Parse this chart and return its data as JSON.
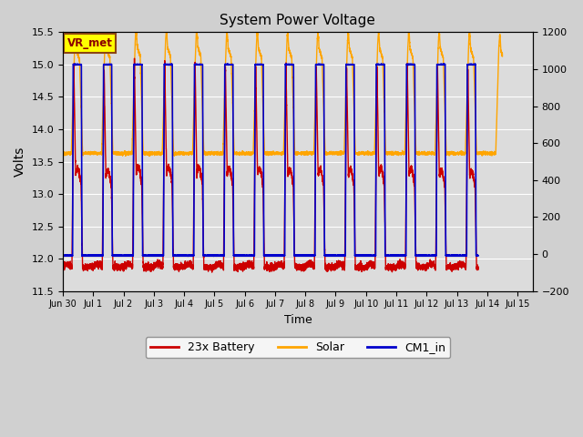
{
  "title": "System Power Voltage",
  "xlabel": "Time",
  "ylabel": "Volts",
  "ylim_left": [
    11.5,
    15.5
  ],
  "ylim_right": [
    -200,
    1200
  ],
  "annotation_text": "VR_met",
  "annotation_box_color": "#ffff00",
  "annotation_border_color": "#8b4513",
  "annotation_text_color": "#8b0000",
  "battery_color": "#cc0000",
  "solar_color": "#ffa500",
  "cm1_color": "#0000cc",
  "legend_labels": [
    "23x Battery",
    "Solar",
    "CM1_in"
  ],
  "xtick_labels": [
    "Jun 30",
    "Jul 1",
    "Jul 2",
    "Jul 3",
    "Jul 4",
    "Jul 5",
    "Jul 6",
    "Jul 7",
    "Jul 8",
    "Jul 9",
    "Jul 10",
    "Jul 11",
    "Jul 12",
    "Jul 13",
    "Jul 14",
    "Jul 15"
  ],
  "yticks_left": [
    11.5,
    12.0,
    12.5,
    13.0,
    13.5,
    14.0,
    14.5,
    15.0,
    15.5
  ],
  "yticks_right": [
    -200,
    0,
    200,
    400,
    600,
    800,
    1000,
    1200
  ],
  "fig_bg": "#d0d0d0",
  "plot_bg": "#dcdcdc",
  "xlim": [
    0,
    15.5
  ]
}
